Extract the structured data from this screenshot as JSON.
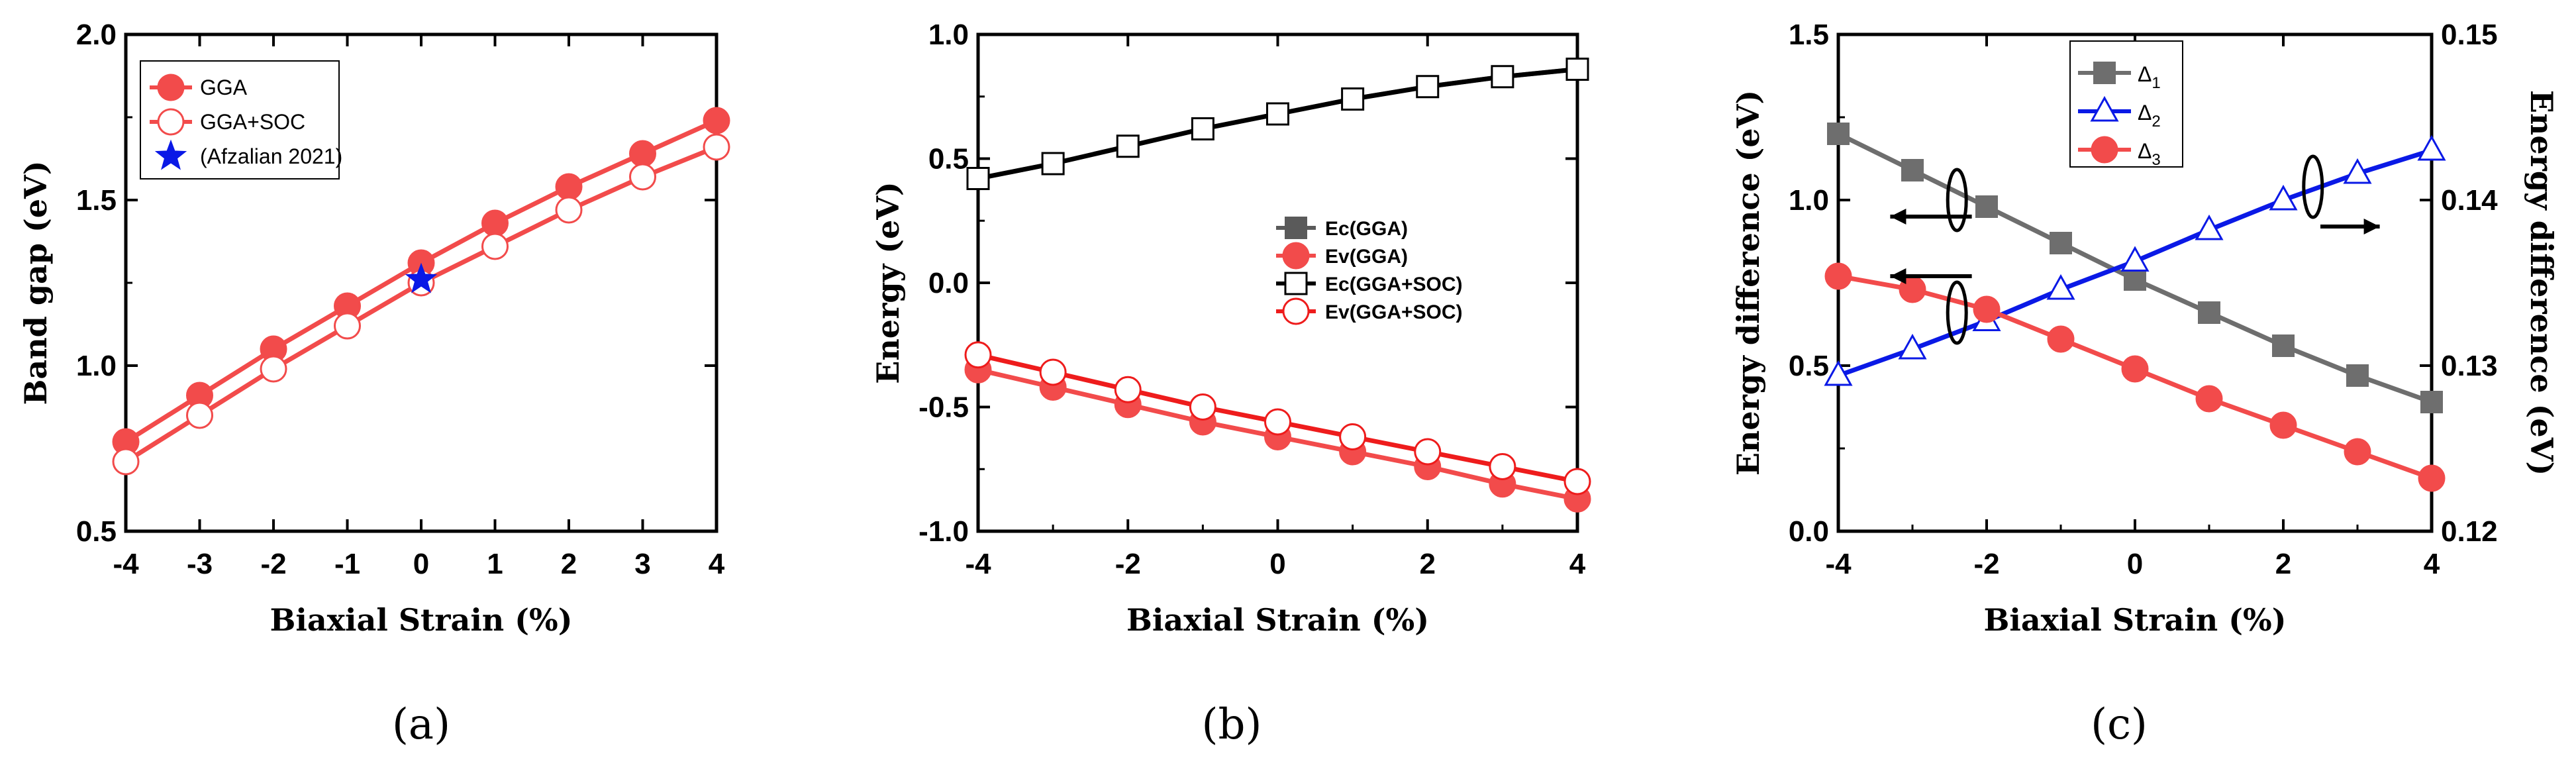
{
  "chart_data": [
    {
      "id": "a",
      "panel_label": "(a)",
      "type": "line",
      "xlabel": "Biaxial Strain (%)",
      "ylabel": "Band gap (eV)",
      "xlim": [
        -4,
        4
      ],
      "ylim": [
        0.5,
        2.0
      ],
      "xticks": [
        -4,
        -3,
        -2,
        -1,
        0,
        1,
        2,
        3,
        4
      ],
      "xtick_labels": [
        "-4",
        "-3",
        "-2",
        "-1",
        "0",
        "1",
        "2",
        "3",
        "4"
      ],
      "yticks": [
        0.5,
        1.0,
        1.5,
        2.0
      ],
      "ytick_labels": [
        "0.5",
        "1.0",
        "1.5",
        "2.0"
      ],
      "legend_position": "top-left",
      "series": [
        {
          "name": "GGA",
          "color": "#f24b4b",
          "marker": "filled-circle",
          "x": [
            -4,
            -3,
            -2,
            -1,
            0,
            1,
            2,
            3,
            4
          ],
          "y": [
            0.77,
            0.91,
            1.05,
            1.18,
            1.31,
            1.43,
            1.54,
            1.64,
            1.74
          ]
        },
        {
          "name": "GGA+SOC",
          "color": "#f24b4b",
          "marker": "open-circle",
          "x": [
            -4,
            -3,
            -2,
            -1,
            0,
            1,
            2,
            3,
            4
          ],
          "y": [
            0.71,
            0.85,
            0.99,
            1.12,
            1.25,
            1.36,
            1.47,
            1.57,
            1.66
          ]
        },
        {
          "name": "(Afzalian 2021)",
          "color": "#0a19e6",
          "marker": "star",
          "x": [
            0
          ],
          "y": [
            1.26
          ]
        }
      ]
    },
    {
      "id": "b",
      "panel_label": "(b)",
      "type": "line",
      "xlabel": "Biaxial Strain (%)",
      "ylabel": "Energy (eV)",
      "xlim": [
        -4,
        4
      ],
      "ylim": [
        -1.0,
        1.0
      ],
      "xticks": [
        -4,
        -2,
        0,
        2,
        4
      ],
      "xtick_labels": [
        "-4",
        "-2",
        "0",
        "2",
        "4"
      ],
      "yticks": [
        -1.0,
        -0.5,
        0.0,
        0.5,
        1.0
      ],
      "ytick_labels": [
        "-1.0",
        "-0.5",
        "0.0",
        "0.5",
        "1.0"
      ],
      "legend_position": "center-right",
      "series": [
        {
          "name": "Ec(GGA)",
          "color": "#5a5a5a",
          "marker": "filled-square",
          "x": [
            -4,
            -3,
            -2,
            -1,
            0,
            1,
            2,
            3,
            4
          ],
          "y": [
            0.42,
            0.48,
            0.55,
            0.62,
            0.68,
            0.74,
            0.79,
            0.83,
            0.86
          ]
        },
        {
          "name": "Ev(GGA)",
          "color": "#f24b4b",
          "marker": "filled-circle",
          "x": [
            -4,
            -3,
            -2,
            -1,
            0,
            1,
            2,
            3,
            4
          ],
          "y": [
            -0.35,
            -0.42,
            -0.49,
            -0.56,
            -0.62,
            -0.68,
            -0.74,
            -0.81,
            -0.87
          ]
        },
        {
          "name": "Ec(GGA+SOC)",
          "color": "#000000",
          "marker": "open-square",
          "x": [
            -4,
            -3,
            -2,
            -1,
            0,
            1,
            2,
            3,
            4
          ],
          "y": [
            0.42,
            0.48,
            0.55,
            0.62,
            0.68,
            0.74,
            0.79,
            0.83,
            0.86
          ]
        },
        {
          "name": "Ev(GGA+SOC)",
          "color": "#ee1c1c",
          "marker": "open-circle",
          "x": [
            -4,
            -3,
            -2,
            -1,
            0,
            1,
            2,
            3,
            4
          ],
          "y": [
            -0.29,
            -0.36,
            -0.43,
            -0.5,
            -0.56,
            -0.62,
            -0.68,
            -0.74,
            -0.8
          ]
        }
      ]
    },
    {
      "id": "c",
      "panel_label": "(c)",
      "type": "line",
      "xlabel": "Biaxial Strain (%)",
      "ylabel": "Energy difference (eV)",
      "ylabel_right": "Energy difference (eV)",
      "xlim": [
        -4,
        4
      ],
      "ylim": [
        0.0,
        1.5
      ],
      "ylim_right": [
        0.12,
        0.15
      ],
      "xticks": [
        -4,
        -2,
        0,
        2,
        4
      ],
      "xtick_labels": [
        "-4",
        "-2",
        "0",
        "2",
        "4"
      ],
      "yticks": [
        0.0,
        0.5,
        1.0,
        1.5
      ],
      "ytick_labels": [
        "0.0",
        "0.5",
        "1.0",
        "1.5"
      ],
      "yticks_right": [
        0.12,
        0.13,
        0.14,
        0.15
      ],
      "ytick_labels_right": [
        "0.12",
        "0.13",
        "0.14",
        "0.15"
      ],
      "legend_position": "top-center",
      "series": [
        {
          "name": "Δ1",
          "legend_base": "Δ",
          "legend_sub": "1",
          "color": "#6e6e6e",
          "marker": "filled-square",
          "axis": "left",
          "x": [
            -4,
            -3,
            -2,
            -1,
            0,
            1,
            2,
            3,
            4
          ],
          "y": [
            1.2,
            1.09,
            0.98,
            0.87,
            0.76,
            0.66,
            0.56,
            0.47,
            0.39
          ]
        },
        {
          "name": "Δ2",
          "legend_base": "Δ",
          "legend_sub": "2",
          "color": "#0a19e6",
          "marker": "open-triangle",
          "axis": "right",
          "x": [
            -4,
            -3,
            -2,
            -1,
            0,
            1,
            2,
            3,
            4
          ],
          "y": [
            0.1294,
            0.131,
            0.1327,
            0.1346,
            0.1363,
            0.1382,
            0.14,
            0.1416,
            0.143
          ]
        },
        {
          "name": "Δ3",
          "legend_base": "Δ",
          "legend_sub": "3",
          "color": "#f24b4b",
          "marker": "filled-circle",
          "axis": "left",
          "x": [
            -4,
            -3,
            -2,
            -1,
            0,
            1,
            2,
            3,
            4
          ],
          "y": [
            0.77,
            0.73,
            0.67,
            0.58,
            0.49,
            0.4,
            0.32,
            0.24,
            0.16
          ]
        }
      ]
    }
  ]
}
